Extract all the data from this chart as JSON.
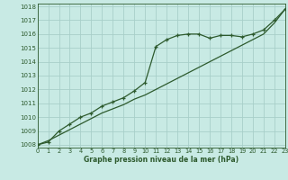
{
  "title": "Graphe pression niveau de la mer (hPa)",
  "bg_color": "#c8eae4",
  "grid_color": "#a8cfc9",
  "line_color": "#2d5a2d",
  "x_values": [
    0,
    1,
    2,
    3,
    4,
    5,
    6,
    7,
    8,
    9,
    10,
    11,
    12,
    13,
    14,
    15,
    16,
    17,
    18,
    19,
    20,
    21,
    22,
    23
  ],
  "y_measured": [
    1008.0,
    1008.2,
    1009.0,
    1009.5,
    1010.0,
    1010.3,
    1010.8,
    1011.1,
    1011.4,
    1011.9,
    1012.5,
    1015.1,
    1015.6,
    1015.9,
    1016.0,
    1016.0,
    1015.7,
    1015.9,
    1015.9,
    1015.8,
    1016.0,
    1016.3,
    1017.0,
    1017.8
  ],
  "y_trend": [
    1008.0,
    1008.3,
    1008.7,
    1009.1,
    1009.5,
    1009.9,
    1010.3,
    1010.6,
    1010.9,
    1011.3,
    1011.6,
    1012.0,
    1012.4,
    1012.8,
    1013.2,
    1013.6,
    1014.0,
    1014.4,
    1014.8,
    1015.2,
    1015.6,
    1016.0,
    1016.8,
    1017.8
  ],
  "ylim": [
    1007.8,
    1018.2
  ],
  "yticks": [
    1008,
    1009,
    1010,
    1011,
    1012,
    1013,
    1014,
    1015,
    1016,
    1017,
    1018
  ],
  "xlim": [
    0,
    23
  ],
  "xticks": [
    0,
    1,
    2,
    3,
    4,
    5,
    6,
    7,
    8,
    9,
    10,
    11,
    12,
    13,
    14,
    15,
    16,
    17,
    18,
    19,
    20,
    21,
    22,
    23
  ]
}
